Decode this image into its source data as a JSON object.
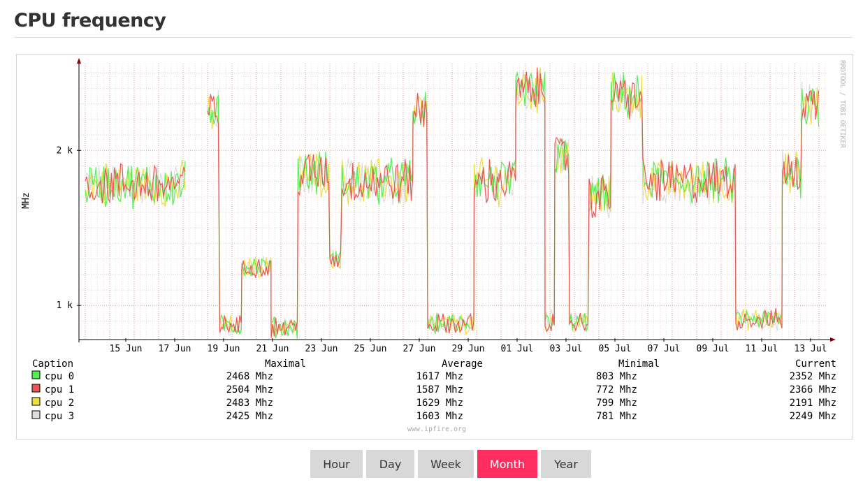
{
  "page": {
    "title": "CPU frequency"
  },
  "graph": {
    "watermark": "RRDTOOL / TOBI OETIKER",
    "footer": "www.ipfire.org",
    "y_axis_label": "MHz",
    "legend_headers": {
      "caption": "Caption",
      "maximal": "Maximal",
      "average": "Average",
      "minimal": "Minimal",
      "current": "Current"
    },
    "legend": [
      {
        "name": "cpu 0",
        "color": "#55ee55",
        "maximal": "2468 Mhz",
        "average": "1617 Mhz",
        "minimal": "803 Mhz",
        "current": "2352 Mhz"
      },
      {
        "name": "cpu 1",
        "color": "#ee5555",
        "maximal": "2504 Mhz",
        "average": "1587 Mhz",
        "minimal": "772 Mhz",
        "current": "2366 Mhz"
      },
      {
        "name": "cpu 2",
        "color": "#eedd44",
        "maximal": "2483 Mhz",
        "average": "1629 Mhz",
        "minimal": "799 Mhz",
        "current": "2191 Mhz"
      },
      {
        "name": "cpu 3",
        "color": "#dddddd",
        "maximal": "2425 Mhz",
        "average": "1603 Mhz",
        "minimal": "781 Mhz",
        "current": "2249 Mhz"
      }
    ]
  },
  "chart_data": {
    "type": "line",
    "ylabel": "MHz",
    "ylim": [
      780,
      2560
    ],
    "y_ticks": [
      {
        "value": 1000,
        "label": "1 k"
      },
      {
        "value": 2000,
        "label": "2 k"
      }
    ],
    "x_ticks": [
      "15 Jun",
      "17 Jun",
      "19 Jun",
      "21 Jun",
      "23 Jun",
      "25 Jun",
      "27 Jun",
      "29 Jun",
      "01 Jul",
      "03 Jul",
      "05 Jul",
      "07 Jul",
      "09 Jul",
      "11 Jul",
      "13 Jul"
    ],
    "x_day_range": [
      0,
      30.5
    ],
    "grid": true,
    "segments": [
      {
        "start_day": 0.0,
        "end_day": 4.1,
        "level": 1780
      },
      {
        "start_day": 5.0,
        "end_day": 5.5,
        "level": 2250
      },
      {
        "start_day": 5.5,
        "end_day": 6.4,
        "level": 870
      },
      {
        "start_day": 6.4,
        "end_day": 7.6,
        "level": 1250
      },
      {
        "start_day": 7.6,
        "end_day": 8.7,
        "level": 860
      },
      {
        "start_day": 8.7,
        "end_day": 10.0,
        "level": 1850
      },
      {
        "start_day": 10.0,
        "end_day": 10.5,
        "level": 1300
      },
      {
        "start_day": 10.5,
        "end_day": 13.4,
        "level": 1800
      },
      {
        "start_day": 13.4,
        "end_day": 14.0,
        "level": 2250
      },
      {
        "start_day": 14.0,
        "end_day": 15.9,
        "level": 880
      },
      {
        "start_day": 15.9,
        "end_day": 17.6,
        "level": 1800
      },
      {
        "start_day": 17.6,
        "end_day": 18.8,
        "level": 2380
      },
      {
        "start_day": 18.8,
        "end_day": 19.2,
        "level": 900
      },
      {
        "start_day": 19.2,
        "end_day": 19.8,
        "level": 1950
      },
      {
        "start_day": 19.8,
        "end_day": 20.6,
        "level": 890
      },
      {
        "start_day": 20.6,
        "end_day": 21.5,
        "level": 1700
      },
      {
        "start_day": 21.5,
        "end_day": 22.8,
        "level": 2350
      },
      {
        "start_day": 22.8,
        "end_day": 26.6,
        "level": 1800
      },
      {
        "start_day": 26.6,
        "end_day": 28.5,
        "level": 910
      },
      {
        "start_day": 28.5,
        "end_day": 29.3,
        "level": 1850
      },
      {
        "start_day": 29.3,
        "end_day": 30.0,
        "level": 2300
      }
    ]
  }
}
